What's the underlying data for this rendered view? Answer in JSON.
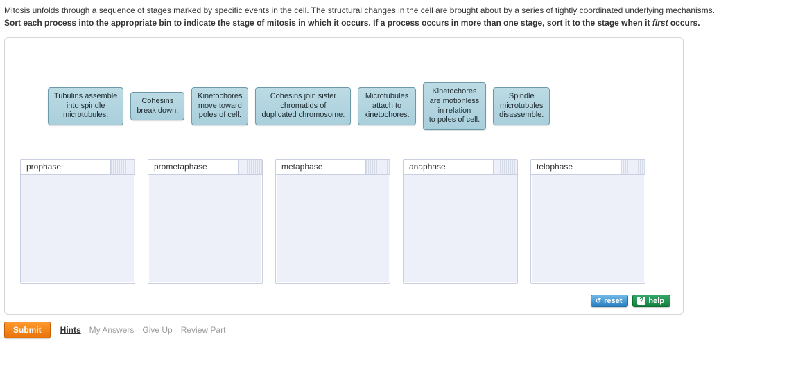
{
  "intro": {
    "line1": "Mitosis unfolds through a sequence of stages marked by specific events in the cell. The structural changes in the cell are brought about by a series of tightly coordinated underlying mechanisms.",
    "line2_before": "Sort each process into the appropriate bin to indicate the stage of mitosis in which it occurs. If a process occurs in more than one stage, sort it to the stage when it ",
    "line2_em": "first",
    "line2_after": " occurs."
  },
  "tiles": [
    {
      "id": "tile-tubulins",
      "text": "Tubulins assemble\ninto spindle\nmicrotubules."
    },
    {
      "id": "tile-cohesins-break",
      "text": "Cohesins\nbreak down."
    },
    {
      "id": "tile-kineto-poles",
      "text": "Kinetochores\nmove toward\npoles of cell."
    },
    {
      "id": "tile-cohesins-join",
      "text": "Cohesins join sister\nchromatids of\nduplicated chromosome."
    },
    {
      "id": "tile-mt-attach",
      "text": "Microtubules\nattach to\nkinetochores."
    },
    {
      "id": "tile-kineto-motionless",
      "text": "Kinetochores\nare motionless\nin relation\nto poles of cell."
    },
    {
      "id": "tile-spindle-dis",
      "text": "Spindle\nmicrotubules\ndisassemble."
    }
  ],
  "bins": [
    {
      "id": "bin-prophase",
      "label": "prophase"
    },
    {
      "id": "bin-prometaphase",
      "label": "prometaphase"
    },
    {
      "id": "bin-metaphase",
      "label": "metaphase"
    },
    {
      "id": "bin-anaphase",
      "label": "anaphase"
    },
    {
      "id": "bin-telophase",
      "label": "telophase"
    }
  ],
  "panel_footer": {
    "reset_label": "reset",
    "help_label": "help"
  },
  "actions": {
    "submit": "Submit",
    "hints": "Hints",
    "my_answers": "My Answers",
    "give_up": "Give Up",
    "review_part": "Review Part"
  },
  "colors": {
    "tile_bg_top": "#bcdbe4",
    "tile_bg_bottom": "#a9cfdc",
    "tile_border": "#6d9aa8",
    "bin_bg": "#edf0f9",
    "bin_border": "#c9cfe0",
    "submit_bg_top": "#ff9a2e",
    "submit_bg_bottom": "#e9730a",
    "reset_bg_top": "#6fb7e8",
    "reset_bg_bottom": "#2a7fc1",
    "help_bg_top": "#34a66a",
    "help_bg_bottom": "#14833f"
  }
}
